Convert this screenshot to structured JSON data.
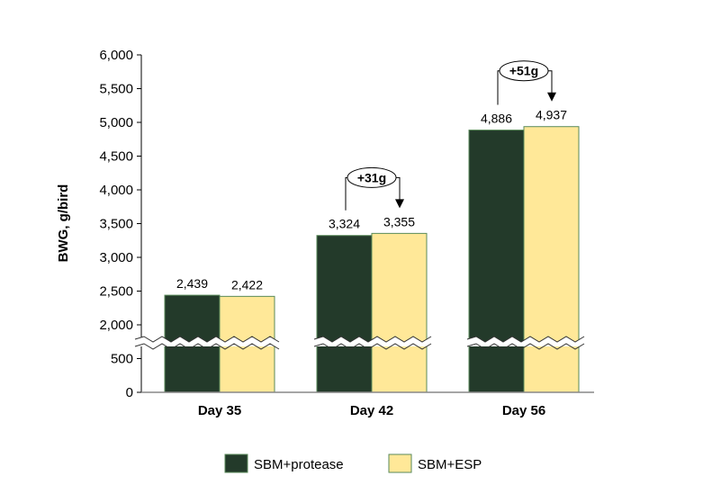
{
  "chart_data": {
    "type": "bar",
    "title": "",
    "xlabel": "",
    "ylabel": "BWG, g/bird",
    "categories": [
      "Day 35",
      "Day 42",
      "Day 56"
    ],
    "series": [
      {
        "name": "SBM+protease",
        "values": [
          2439,
          3324,
          4886
        ],
        "labels": [
          "2,439",
          "3,324",
          "4,886"
        ],
        "color": "#233a2a"
      },
      {
        "name": "SBM+ESP",
        "values": [
          2422,
          3355,
          4937
        ],
        "labels": [
          "2,422",
          "3,355",
          "4,937"
        ],
        "color": "#ffe898"
      }
    ],
    "ylim": [
      0,
      6000
    ],
    "axis_break": [
      500,
      2000
    ],
    "y_ticks": [
      {
        "value": 0,
        "label": "0"
      },
      {
        "value": 500,
        "label": "500"
      },
      {
        "value": 2000,
        "label": "2,000"
      },
      {
        "value": 2500,
        "label": "2,500"
      },
      {
        "value": 3000,
        "label": "3,000"
      },
      {
        "value": 3500,
        "label": "3,500"
      },
      {
        "value": 4000,
        "label": "4,000"
      },
      {
        "value": 4500,
        "label": "4,500"
      },
      {
        "value": 5000,
        "label": "5,000"
      },
      {
        "value": 5500,
        "label": "5,500"
      },
      {
        "value": 6000,
        "label": "6,000"
      }
    ],
    "annotations": [
      {
        "category": "Day 42",
        "text": "+31g"
      },
      {
        "category": "Day 56",
        "text": "+51g"
      }
    ],
    "grid": false,
    "legend_position": "bottom",
    "bar_border_color": "#5a8a5a"
  }
}
